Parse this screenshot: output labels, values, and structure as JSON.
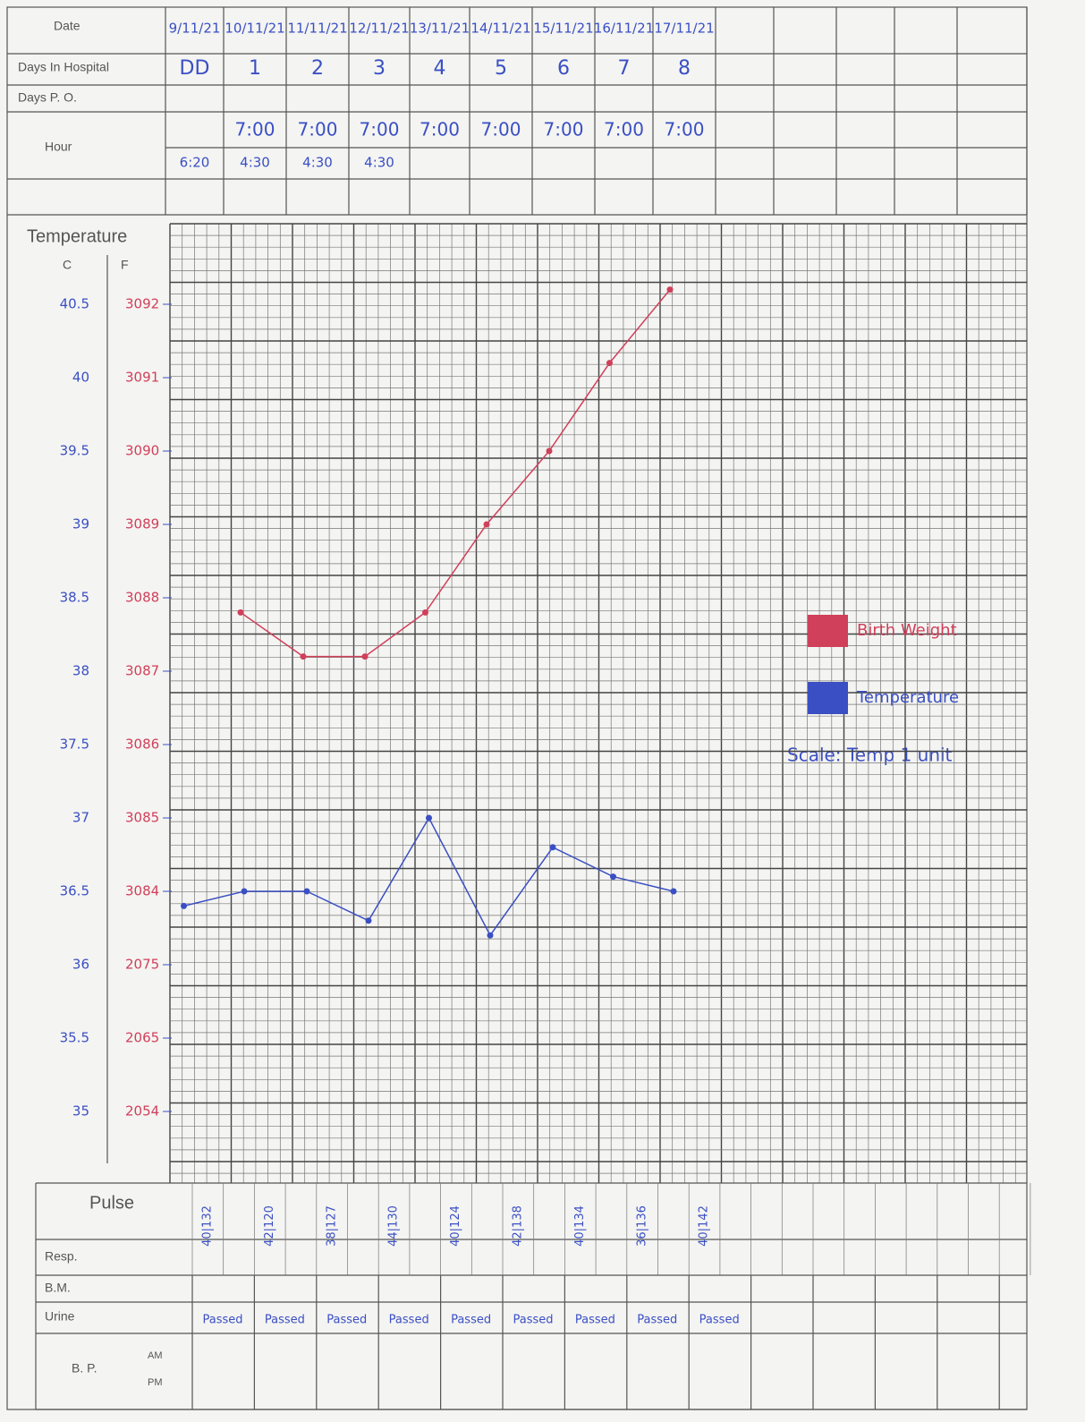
{
  "form": {
    "labels": {
      "date": "Date",
      "days_in_hospital": "Days In Hospital",
      "days_po": "Days P. O.",
      "hour": "Hour",
      "temperature": "Temperature",
      "c": "C",
      "f": "F",
      "pulse": "Pulse",
      "resp": "Resp.",
      "bm": "B.M.",
      "urine": "Urine",
      "bp": "B. P.",
      "am": "AM",
      "pm": "PM"
    },
    "dates": [
      "9/11/21",
      "10/11/21",
      "11/11/21",
      "12/11/21",
      "13/11/21",
      "14/11/21",
      "15/11/21",
      "16/11/21",
      "17/11/21"
    ],
    "days": [
      "DD",
      "1",
      "2",
      "3",
      "4",
      "5",
      "6",
      "7",
      "8"
    ],
    "hour_am": [
      "7:00",
      "7:00",
      "7:00",
      "7:00",
      "7:00",
      "7:00",
      "7:00",
      "7:00"
    ],
    "hour_pm": [
      "6:20",
      "4:30",
      "4:30",
      "4:30"
    ],
    "pulse": [
      "40|132",
      "42|120",
      "38|127",
      "44|130",
      "40|124",
      "42|138",
      "40|134",
      "36|136",
      "40|142"
    ],
    "urine": [
      "Passed",
      "Passed",
      "Passed",
      "Passed",
      "Passed",
      "Passed",
      "Passed",
      "Passed",
      "Passed"
    ]
  },
  "chart_data": {
    "type": "line",
    "ylim": [
      34.5,
      41.0
    ],
    "yticks": [
      40.5,
      40.0,
      39.5,
      39.0,
      38.5,
      38.0,
      37.5,
      37.0,
      36.5,
      36.0,
      35.5,
      35.0
    ],
    "f_labels": [
      "3092",
      "3091",
      "3090",
      "3089",
      "3088",
      "3087",
      "3086",
      "3085",
      "3084",
      "2075",
      "2065",
      "2054"
    ],
    "grid": true,
    "series": [
      {
        "name": "Birth Weight",
        "color": "#d0405a",
        "values": [
          null,
          38.4,
          38.1,
          38.1,
          38.4,
          39.0,
          39.5,
          40.1,
          40.6
        ]
      },
      {
        "name": "Temperature",
        "color": "#3a4fc4",
        "values": [
          36.4,
          36.5,
          36.5,
          36.3,
          37.0,
          36.2,
          36.8,
          36.6,
          36.5
        ]
      }
    ],
    "note": "Scale: Temp 1 unit"
  }
}
